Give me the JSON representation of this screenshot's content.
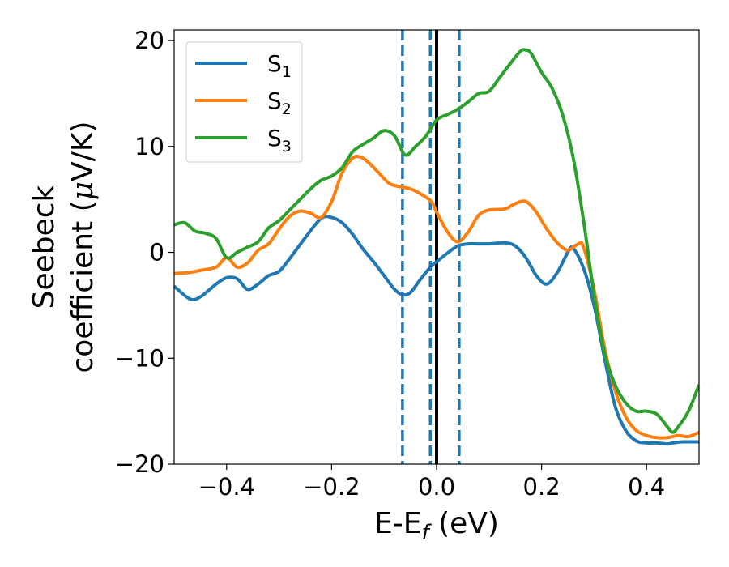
{
  "chart_data": {
    "type": "line",
    "xlabel_main": "E-E",
    "xlabel_sub": "f",
    "xlabel_unit": " (eV)",
    "ylabel_line1": "Seebeck",
    "ylabel_line2_text": "coefficient  (",
    "ylabel_mu": "μ",
    "ylabel_unit": "V/K)",
    "xlim": [
      -0.5,
      0.5
    ],
    "ylim": [
      -20,
      21
    ],
    "xticks": [
      -0.4,
      -0.2,
      0.0,
      0.2,
      0.4
    ],
    "xtick_labels": [
      "−0.4",
      "−0.2",
      "0.0",
      "0.2",
      "0.4"
    ],
    "yticks": [
      -20,
      -10,
      0,
      10,
      20
    ],
    "ytick_labels": [
      "−20",
      "−10",
      "0",
      "10",
      "20"
    ],
    "grid": false,
    "legend_position": "top-left",
    "vertical_lines": [
      {
        "x": -0.065,
        "style": "dashed",
        "color": "#1f77b4"
      },
      {
        "x": -0.012,
        "style": "dashed",
        "color": "#1f77b4"
      },
      {
        "x": 0.0,
        "style": "solid",
        "color": "#000000"
      },
      {
        "x": 0.043,
        "style": "dashed",
        "color": "#1f77b4"
      }
    ],
    "series": [
      {
        "name": "S",
        "sub": "1",
        "color": "#1f77b4",
        "x": [
          -0.5,
          -0.47,
          -0.45,
          -0.42,
          -0.4,
          -0.38,
          -0.36,
          -0.34,
          -0.32,
          -0.3,
          -0.28,
          -0.25,
          -0.22,
          -0.2,
          -0.18,
          -0.16,
          -0.14,
          -0.12,
          -0.1,
          -0.08,
          -0.065,
          -0.05,
          -0.03,
          -0.01,
          0.0,
          0.02,
          0.04,
          0.06,
          0.08,
          0.1,
          0.13,
          0.15,
          0.17,
          0.19,
          0.21,
          0.23,
          0.25,
          0.26,
          0.28,
          0.3,
          0.32,
          0.34,
          0.36,
          0.38,
          0.4,
          0.42,
          0.44,
          0.45,
          0.47,
          0.5
        ],
        "y": [
          -3.2,
          -4.4,
          -4.2,
          -3.0,
          -2.4,
          -2.5,
          -3.5,
          -3.0,
          -2.2,
          -1.8,
          -0.6,
          1.4,
          3.2,
          3.3,
          2.8,
          1.7,
          0.3,
          -0.9,
          -2.2,
          -3.5,
          -4.0,
          -3.8,
          -2.5,
          -1.3,
          -0.9,
          -0.1,
          0.6,
          0.8,
          0.8,
          0.8,
          0.9,
          0.6,
          -0.5,
          -2.2,
          -3.0,
          -1.9,
          0.0,
          0.4,
          -1.5,
          -5.0,
          -10.0,
          -14.5,
          -16.8,
          -17.8,
          -18.0,
          -18.0,
          -18.1,
          -18.0,
          -17.9,
          -17.9
        ]
      },
      {
        "name": "S",
        "sub": "2",
        "color": "#ff7f0e",
        "x": [
          -0.5,
          -0.47,
          -0.45,
          -0.42,
          -0.4,
          -0.38,
          -0.36,
          -0.34,
          -0.32,
          -0.3,
          -0.28,
          -0.26,
          -0.24,
          -0.22,
          -0.2,
          -0.18,
          -0.16,
          -0.145,
          -0.13,
          -0.11,
          -0.09,
          -0.07,
          -0.05,
          -0.03,
          -0.01,
          0.0,
          0.02,
          0.04,
          0.06,
          0.08,
          0.1,
          0.13,
          0.15,
          0.17,
          0.19,
          0.21,
          0.23,
          0.25,
          0.27,
          0.28,
          0.3,
          0.32,
          0.34,
          0.36,
          0.38,
          0.4,
          0.42,
          0.44,
          0.46,
          0.48,
          0.5
        ],
        "y": [
          -2.0,
          -1.9,
          -1.7,
          -1.4,
          -0.5,
          -1.4,
          -1.0,
          0.2,
          0.8,
          2.2,
          3.4,
          3.9,
          3.7,
          3.3,
          4.8,
          7.5,
          8.9,
          9.0,
          8.5,
          7.5,
          6.5,
          6.2,
          6.0,
          5.5,
          4.8,
          3.8,
          2.0,
          1.0,
          1.9,
          3.5,
          4.0,
          4.1,
          4.6,
          4.8,
          3.8,
          2.2,
          0.9,
          0.2,
          0.8,
          0.5,
          -3.5,
          -9.0,
          -13.0,
          -15.5,
          -16.8,
          -17.3,
          -17.5,
          -17.5,
          -17.3,
          -17.4,
          -17.0
        ]
      },
      {
        "name": "S",
        "sub": "3",
        "color": "#2ca02c",
        "x": [
          -0.5,
          -0.48,
          -0.46,
          -0.44,
          -0.42,
          -0.4,
          -0.38,
          -0.36,
          -0.34,
          -0.32,
          -0.3,
          -0.28,
          -0.26,
          -0.24,
          -0.22,
          -0.2,
          -0.18,
          -0.16,
          -0.14,
          -0.12,
          -0.1,
          -0.08,
          -0.06,
          -0.04,
          -0.02,
          0.0,
          0.02,
          0.04,
          0.06,
          0.08,
          0.1,
          0.12,
          0.14,
          0.16,
          0.17,
          0.18,
          0.2,
          0.22,
          0.24,
          0.26,
          0.28,
          0.3,
          0.32,
          0.34,
          0.36,
          0.38,
          0.4,
          0.42,
          0.44,
          0.45,
          0.46,
          0.48,
          0.5
        ],
        "y": [
          2.6,
          2.8,
          2.0,
          1.8,
          1.3,
          -0.5,
          0.0,
          0.5,
          1.0,
          2.3,
          3.0,
          4.0,
          5.0,
          6.0,
          6.8,
          7.2,
          8.0,
          9.5,
          10.2,
          10.8,
          11.5,
          11.0,
          9.2,
          10.0,
          11.0,
          12.5,
          13.0,
          13.5,
          14.2,
          15.0,
          15.2,
          16.5,
          17.8,
          19.0,
          19.1,
          18.8,
          17.0,
          15.5,
          13.0,
          9.0,
          3.0,
          -4.0,
          -9.5,
          -12.5,
          -14.2,
          -15.0,
          -15.0,
          -15.3,
          -16.5,
          -17.0,
          -16.5,
          -15.0,
          -12.5
        ]
      }
    ]
  }
}
